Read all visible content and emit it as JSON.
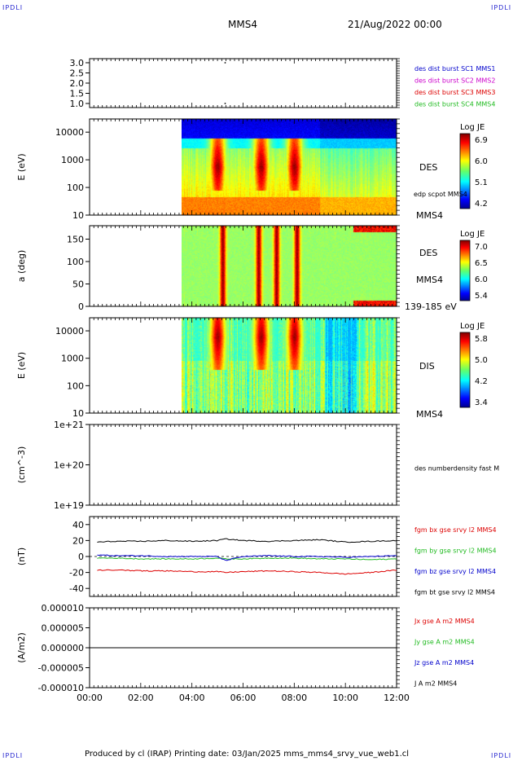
{
  "corner_label": "IPDLI",
  "header": {
    "spacecraft": "MMS4",
    "date": "21/Aug/2022 00:00"
  },
  "footer": "Produced by cl (IRAP)   Printing date: 03/Jan/2025   mms_mms4_srvy_vue_web1.cl",
  "colors": {
    "blue": "#0000cc",
    "magenta": "#cc00cc",
    "red": "#dd0000",
    "green": "#22bb22",
    "black": "#000000"
  },
  "time_axis": {
    "ticks": [
      "00:00",
      "02:00",
      "04:00",
      "06:00",
      "08:00",
      "10:00",
      "12:00"
    ],
    "range_hours": [
      0,
      12
    ]
  },
  "panels": {
    "burst": {
      "ylim": [
        0.8,
        3.2
      ],
      "yticks": [
        "3.0",
        "2.5",
        "2.0",
        "1.5",
        "1.0"
      ],
      "legend": [
        {
          "text": "des dist burst SC1 MMS1",
          "color": "#0000cc"
        },
        {
          "text": "des dist burst SC2 MMS2",
          "color": "#cc00cc"
        },
        {
          "text": "des dist burst SC3 MMS3",
          "color": "#dd0000"
        },
        {
          "text": "des dist burst SC4 MMS4",
          "color": "#22bb22"
        }
      ],
      "points": [
        {
          "t": 5.3,
          "y": 3.0
        },
        {
          "t": 5.3,
          "y": 1.0
        }
      ]
    },
    "des_energy": {
      "ylabel": "E (eV)",
      "yticks": [
        "10000",
        "1000",
        "100",
        "10"
      ],
      "label": "DES",
      "sub_label": "edp scpot MMS4",
      "bottom_label": "MMS4",
      "colorbar": {
        "title": "Log JE",
        "ticks": [
          "6.9",
          "6.0",
          "5.1",
          "4.2"
        ]
      }
    },
    "des_pitch": {
      "ylabel": "a (deg)",
      "yticks": [
        "150",
        "100",
        "50",
        "0"
      ],
      "label": "DES",
      "sub_label": "MMS4",
      "bottom_label": "139-185 eV",
      "colorbar": {
        "title": "Log JE",
        "ticks": [
          "7.0",
          "6.5",
          "6.0",
          "5.4"
        ]
      }
    },
    "dis_energy": {
      "ylabel": "E (eV)",
      "yticks": [
        "10000",
        "1000",
        "100",
        "10"
      ],
      "label": "DIS",
      "bottom_label": "MMS4",
      "colorbar": {
        "title": "Log JE",
        "ticks": [
          "5.8",
          "5.0",
          "4.2",
          "3.4"
        ]
      }
    },
    "density": {
      "ylabel": "(cm^-3)",
      "yticks": [
        "1e+21",
        "1e+20",
        "1e+19"
      ],
      "legend": [
        {
          "text": "des numberdensity fast M",
          "color": "#000000"
        }
      ]
    },
    "bfield": {
      "ylabel": "(nT)",
      "yticks": [
        "40",
        "20",
        "0",
        "-20",
        "-40"
      ],
      "legend": [
        {
          "text": "fgm bx gse srvy l2 MMS4",
          "color": "#dd0000"
        },
        {
          "text": "fgm by gse srvy l2 MMS4",
          "color": "#22bb22"
        },
        {
          "text": "fgm bz gse srvy l2 MMS4",
          "color": "#0000cc"
        },
        {
          "text": "fgm bt gse srvy l2 MMS4",
          "color": "#000000"
        }
      ]
    },
    "current": {
      "ylabel": "(A/m2)",
      "yticks": [
        "0.000010",
        "0.000005",
        "0.000000",
        "-0.000005",
        "-0.000010"
      ],
      "legend": [
        {
          "text": "Jx gse A m2 MMS4",
          "color": "#dd0000"
        },
        {
          "text": "Jy gse A m2 MMS4",
          "color": "#22bb22"
        },
        {
          "text": "Jz gse A m2 MMS4",
          "color": "#0000cc"
        },
        {
          "text": "J A m2 MMS4",
          "color": "#000000"
        }
      ]
    }
  },
  "chart_data": [
    {
      "type": "line",
      "ylabel": "(nT)",
      "ylim": [
        -50,
        50
      ],
      "x": [
        0.3,
        1,
        2,
        3,
        4,
        5,
        5.3,
        6,
        7,
        8,
        9,
        10,
        11,
        12
      ],
      "series": [
        {
          "name": "fgm bx gse srvy l2 MMS4",
          "color": "#dd0000",
          "values": [
            -17,
            -17,
            -18,
            -18,
            -19,
            -19,
            -20,
            -19,
            -18,
            -19,
            -20,
            -22,
            -20,
            -17
          ]
        },
        {
          "name": "fgm by gse srvy l2 MMS4",
          "color": "#22bb22",
          "values": [
            -2,
            -2,
            -3,
            -3,
            -3,
            -2,
            -3,
            -3,
            -2,
            -2,
            -3,
            -3,
            -4,
            -3
          ]
        },
        {
          "name": "fgm bz gse srvy l2 MMS4",
          "color": "#0000cc",
          "values": [
            2,
            1,
            1,
            0,
            0,
            0,
            -5,
            0,
            1,
            0,
            0,
            -1,
            0,
            1
          ]
        },
        {
          "name": "fgm bt gse srvy l2 MMS4",
          "color": "#000000",
          "values": [
            18,
            19,
            19,
            20,
            19,
            20,
            22,
            20,
            19,
            20,
            21,
            18,
            19,
            20
          ]
        }
      ]
    },
    {
      "type": "line",
      "ylabel": "(A/m2)",
      "ylim": [
        -1e-05,
        1e-05
      ],
      "x": [
        0,
        12
      ],
      "series": [
        {
          "name": "Jx gse A m2 MMS4",
          "color": "#dd0000",
          "values": [
            0,
            0
          ]
        },
        {
          "name": "Jy gse A m2 MMS4",
          "color": "#22bb22",
          "values": [
            0,
            0
          ]
        },
        {
          "name": "Jz gse A m2 MMS4",
          "color": "#0000cc",
          "values": [
            0,
            0
          ]
        },
        {
          "name": "J A m2 MMS4",
          "color": "#000000",
          "values": [
            0,
            0
          ]
        }
      ]
    },
    {
      "type": "heatmap",
      "ylabel": "E (eV)",
      "label": "DES",
      "data_start_hour": 3.6,
      "yscale": "log",
      "ylim": [
        10,
        30000
      ],
      "hot_events_hours": [
        5.0,
        6.7,
        8.0
      ],
      "color_range": [
        4.2,
        6.9
      ]
    },
    {
      "type": "heatmap",
      "ylabel": "a (deg)",
      "label": "DES",
      "data_start_hour": 3.6,
      "ylim": [
        0,
        180
      ],
      "color_range": [
        5.4,
        7.0
      ]
    },
    {
      "type": "heatmap",
      "ylabel": "E (eV)",
      "label": "DIS",
      "data_start_hour": 3.6,
      "yscale": "log",
      "ylim": [
        10,
        30000
      ],
      "hot_events_hours": [
        5.0,
        6.7,
        8.0
      ],
      "color_range": [
        3.4,
        5.8
      ]
    }
  ]
}
